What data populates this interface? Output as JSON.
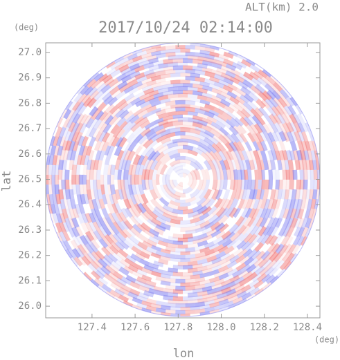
{
  "chart_data": {
    "type": "radar-field",
    "title": "2017/10/24 02:14:00",
    "subtitle": "ALT(km) 2.0",
    "x_label": "lon",
    "y_label": "lat",
    "x_unit": "(deg)",
    "y_unit": "(deg)",
    "xlim": [
      127.185,
      128.458
    ],
    "ylim": [
      25.954,
      27.038
    ],
    "xticks": [
      127.4,
      127.6,
      {
        "value": 127.8,
        "label": "127.8"
      },
      {
        "value": 128.0,
        "label": "128.0"
      },
      128.2,
      128.4
    ],
    "yticks": [
      {
        "value": 26.0,
        "label": "26.0"
      },
      26.1,
      26.2,
      26.3,
      26.4,
      26.5,
      26.6,
      26.7,
      26.8,
      26.9,
      {
        "value": 27.0,
        "label": "27.0"
      }
    ]
  }
}
